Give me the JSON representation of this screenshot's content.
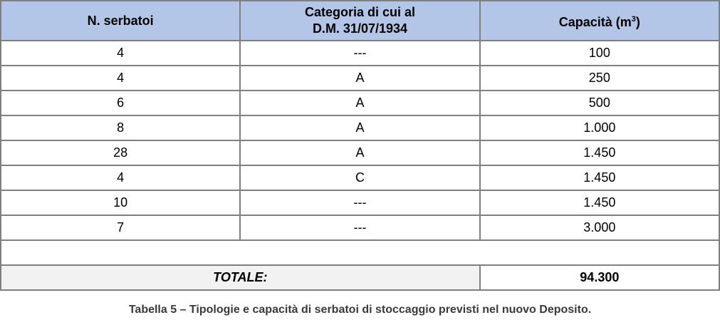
{
  "table": {
    "headers": {
      "count": "N. serbatoi",
      "category_line1": "Categoria di cui al",
      "category_line2": "D.M. 31/07/1934",
      "capacity": "Capacità (m",
      "capacity_sup": "3",
      "capacity_close": ")"
    },
    "rows": [
      {
        "count": "4",
        "category": "---",
        "capacity": "100"
      },
      {
        "count": "4",
        "category": "A",
        "capacity": "250"
      },
      {
        "count": "6",
        "category": "A",
        "capacity": "500"
      },
      {
        "count": "8",
        "category": "A",
        "capacity": "1.000"
      },
      {
        "count": "28",
        "category": "A",
        "capacity": "1.450"
      },
      {
        "count": "4",
        "category": "C",
        "capacity": "1.450"
      },
      {
        "count": "10",
        "category": "---",
        "capacity": "1.450"
      },
      {
        "count": "7",
        "category": "---",
        "capacity": "3.000"
      }
    ],
    "total_label": "TOTALE:",
    "total_value": "94.300"
  },
  "caption": "Tabella 5 – Tipologie e capacità di serbatoi di stoccaggio previsti nel nuovo Deposito.",
  "colors": {
    "header_bg": "#b4c6e7",
    "total_label_bg": "#f2f2f2",
    "border": "#7f7f7f"
  }
}
